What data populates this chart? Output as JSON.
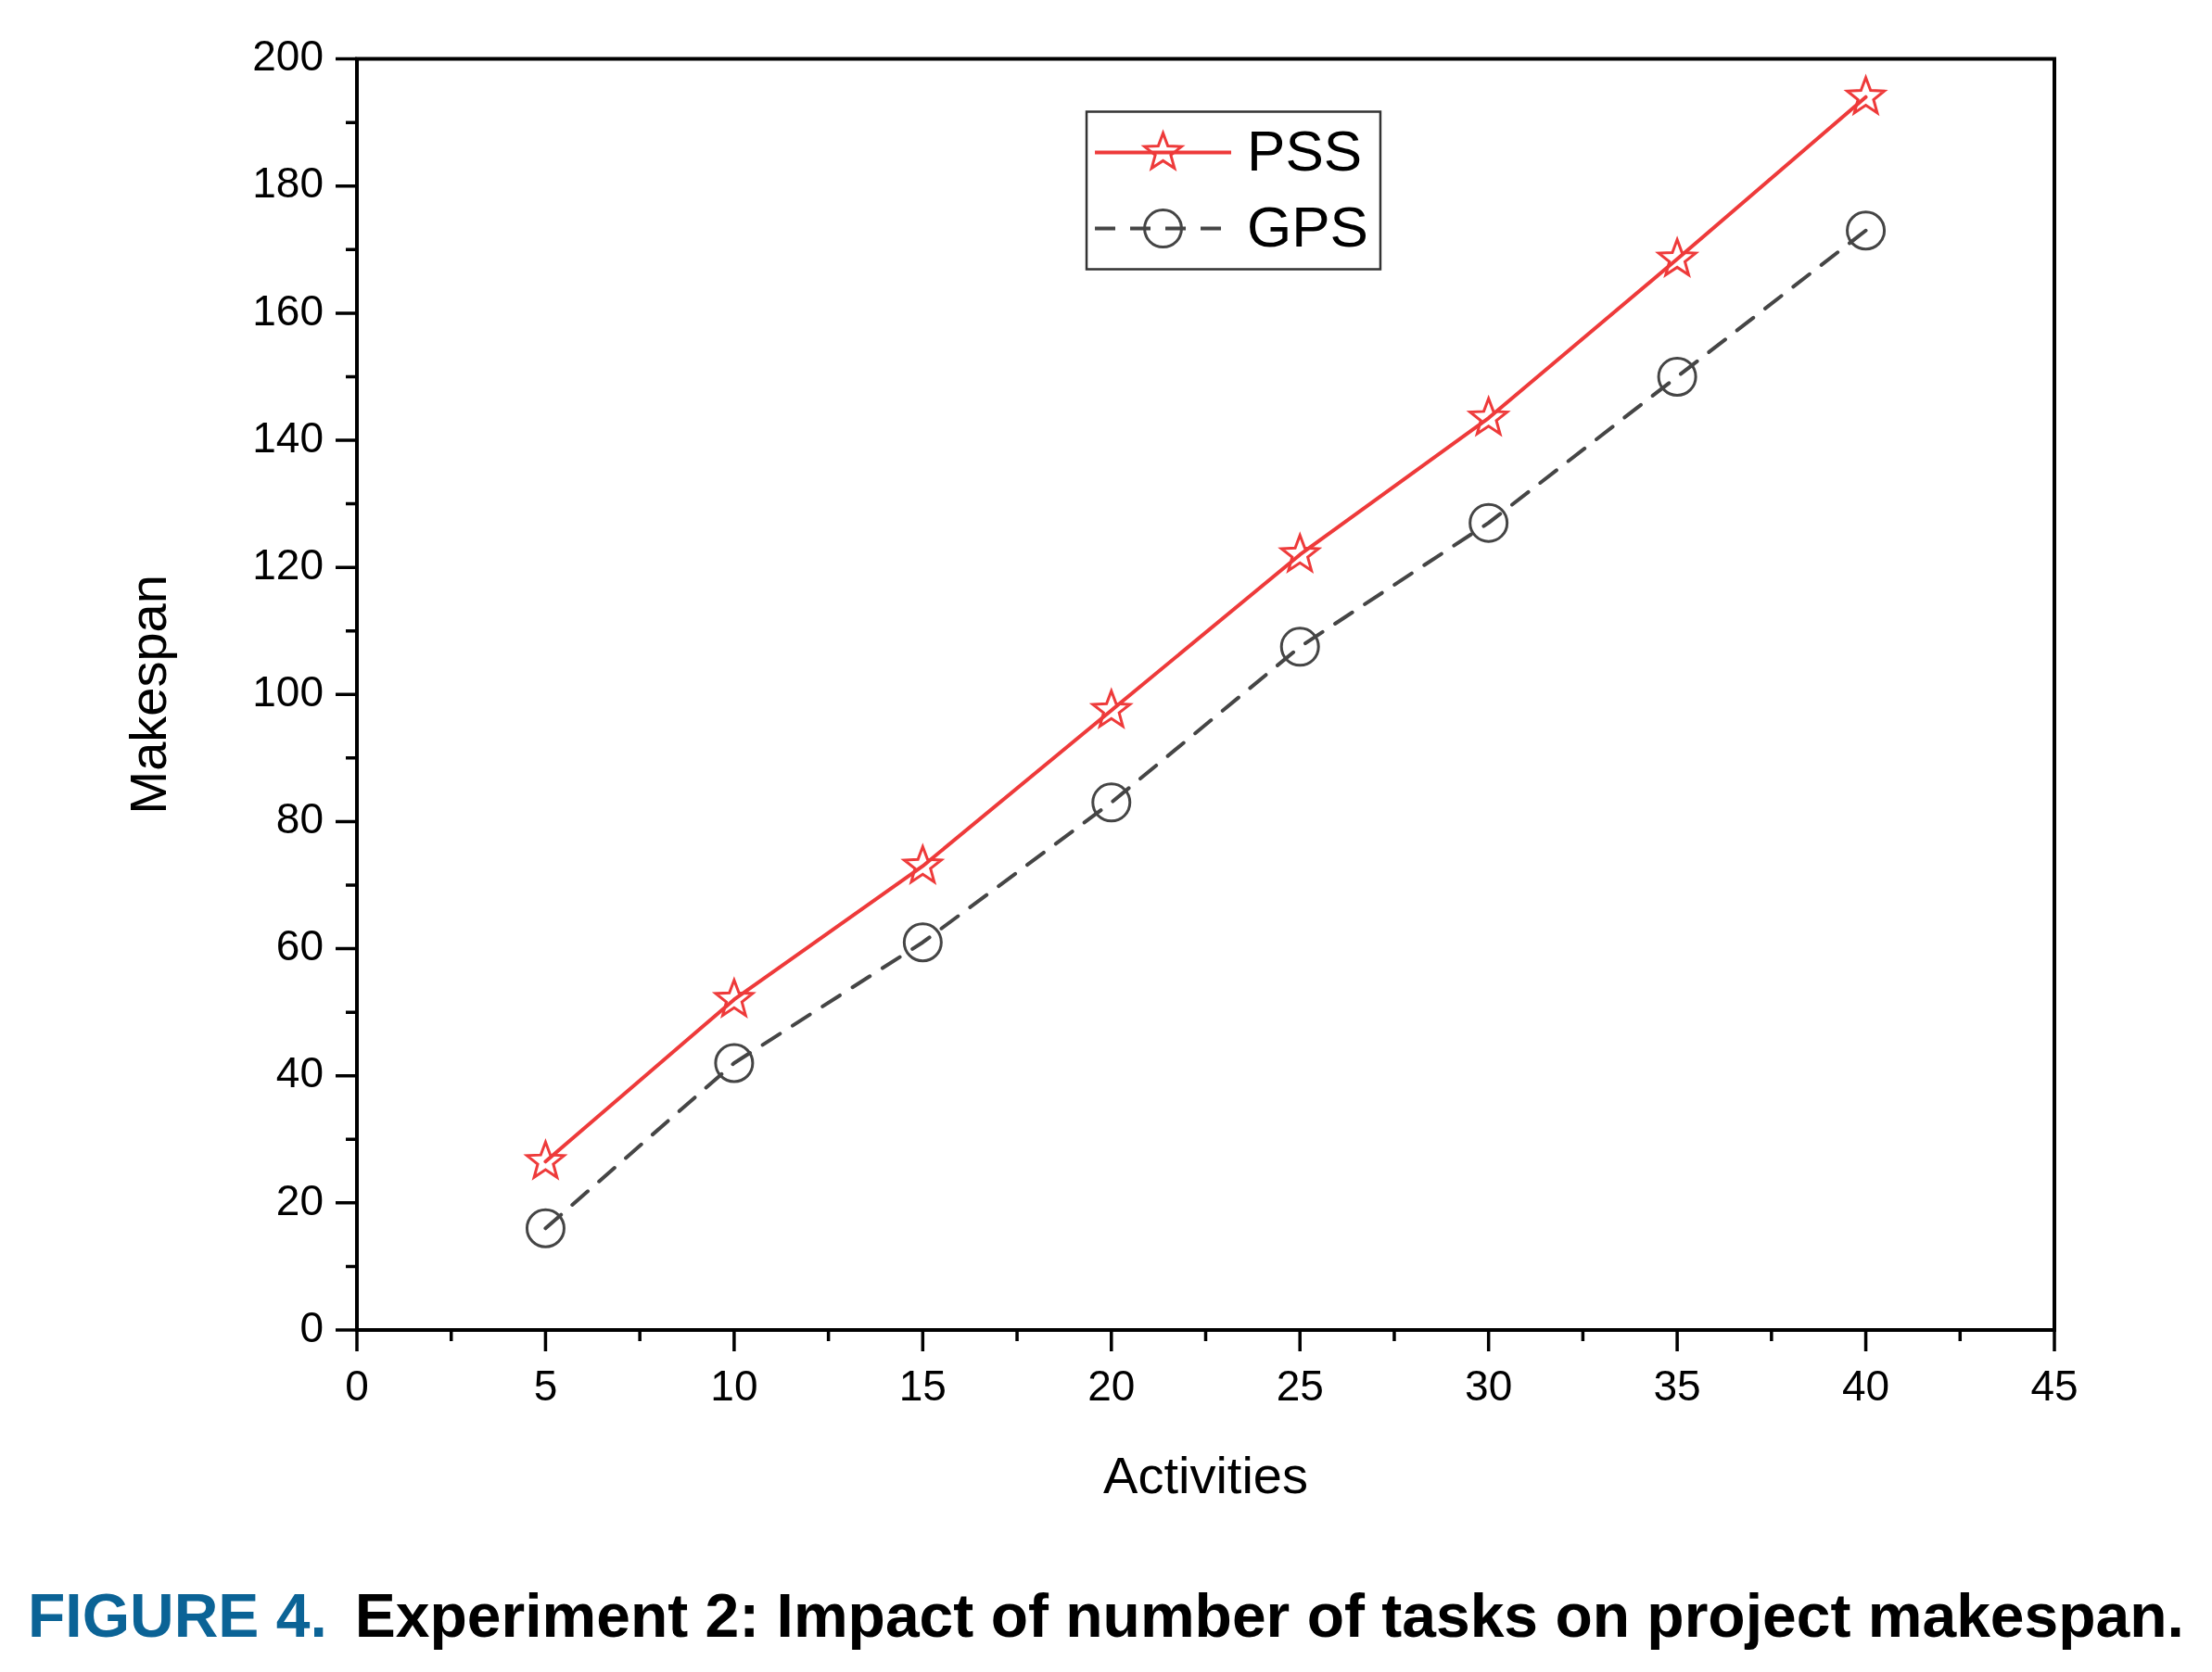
{
  "chart_data": {
    "type": "line",
    "xlabel": "Activities",
    "ylabel": "Makespan",
    "x": [
      5,
      10,
      15,
      20,
      25,
      30,
      35,
      40
    ],
    "series": [
      {
        "name": "PSS",
        "color": "#ee3a3a",
        "values": [
          26.5,
          52,
          73,
          97.5,
          122,
          143.5,
          168.5,
          194
        ],
        "marker": "star",
        "line_style": "solid"
      },
      {
        "name": "GPS",
        "color": "#454545",
        "values": [
          16,
          42,
          61,
          83,
          107.5,
          127,
          150,
          173
        ],
        "marker": "circle",
        "line_style": "dashed"
      }
    ],
    "xlim": [
      0,
      45
    ],
    "xticks": [
      0,
      {
        "value": 2.5,
        "label": null
      },
      5,
      {
        "value": 7.5,
        "label": null
      },
      10,
      {
        "value": 12.5,
        "label": null
      },
      15,
      {
        "value": 17.5,
        "label": null
      },
      20,
      {
        "value": 22.5,
        "label": null
      },
      25,
      {
        "value": 27.5,
        "label": null
      },
      30,
      {
        "value": 32.5,
        "label": null
      },
      35,
      {
        "value": 37.5,
        "label": null
      },
      40,
      {
        "value": 42.5,
        "label": null
      },
      45
    ],
    "ylim": [
      0,
      200
    ],
    "yticks": [
      0,
      {
        "value": 10,
        "label": null
      },
      20,
      {
        "value": 30,
        "label": null
      },
      40,
      {
        "value": 50,
        "label": null
      },
      60,
      {
        "value": 70,
        "label": null
      },
      80,
      {
        "value": 90,
        "label": null
      },
      100,
      {
        "value": 110,
        "label": null
      },
      120,
      {
        "value": 130,
        "label": null
      },
      140,
      {
        "value": 150,
        "label": null
      },
      160,
      {
        "value": 170,
        "label": null
      },
      180,
      {
        "value": 190,
        "label": null
      },
      200
    ],
    "legend": "top",
    "annotations": [
      "FIGURE 4.",
      "Experiment 2: Impact of number of tasks on project makespan."
    ]
  }
}
